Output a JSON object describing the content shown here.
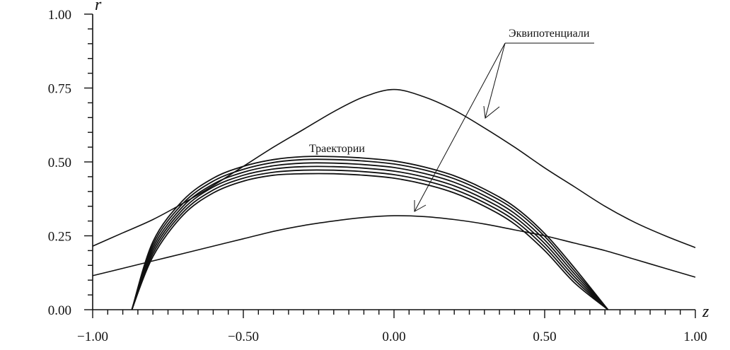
{
  "chart_data": {
    "type": "line",
    "xlabel": "z",
    "ylabel": "r",
    "xlim": [
      -1.0,
      1.0
    ],
    "ylim": [
      0.0,
      1.0
    ],
    "x_ticks": [
      -1.0,
      -0.5,
      0.0,
      0.5,
      1.0
    ],
    "x_tick_labels": [
      "−1.00",
      "−0.50",
      "0.00",
      "0.50",
      "1.00"
    ],
    "y_ticks": [
      0.0,
      0.25,
      0.5,
      0.75,
      1.0
    ],
    "y_tick_labels": [
      "0.00",
      "0.25",
      "0.50",
      "0.75",
      "1.00"
    ],
    "minor_tick_step": 0.05,
    "grid": false,
    "colors": {
      "line": "#111111",
      "axis": "#111111",
      "background": "#ffffff"
    },
    "annotations": [
      {
        "text": "Эквипотенциали",
        "points_to": [
          "equipotential-outer",
          "equipotential-inner"
        ]
      },
      {
        "text": "Траектории",
        "points_to": [
          "trajectories"
        ]
      }
    ],
    "series": [
      {
        "group": "equipotential",
        "x": [
          -1.0,
          -0.9,
          -0.8,
          -0.7,
          -0.6,
          -0.5,
          -0.4,
          -0.3,
          -0.2,
          -0.1,
          0.0,
          0.1,
          0.2,
          0.3,
          0.4,
          0.5,
          0.6,
          0.7,
          0.8,
          0.9,
          1.0
        ],
        "y": [
          0.215,
          0.26,
          0.305,
          0.36,
          0.42,
          0.485,
          0.55,
          0.61,
          0.67,
          0.72,
          0.745,
          0.72,
          0.675,
          0.615,
          0.55,
          0.48,
          0.415,
          0.35,
          0.295,
          0.25,
          0.21
        ]
      },
      {
        "group": "equipotential",
        "x": [
          -1.0,
          -0.9,
          -0.8,
          -0.7,
          -0.6,
          -0.5,
          -0.4,
          -0.3,
          -0.2,
          -0.1,
          0.0,
          0.1,
          0.2,
          0.3,
          0.4,
          0.5,
          0.6,
          0.7,
          0.8,
          0.9,
          1.0
        ],
        "y": [
          0.115,
          0.14,
          0.165,
          0.19,
          0.215,
          0.24,
          0.265,
          0.285,
          0.3,
          0.312,
          0.318,
          0.315,
          0.305,
          0.29,
          0.27,
          0.25,
          0.225,
          0.2,
          0.17,
          0.14,
          0.11
        ]
      },
      {
        "group": "trajectory",
        "x": [
          -0.87,
          -0.8,
          -0.7,
          -0.6,
          -0.5,
          -0.4,
          -0.3,
          -0.2,
          -0.1,
          0.0,
          0.1,
          0.2,
          0.3,
          0.4,
          0.5,
          0.6,
          0.71
        ],
        "y": [
          0.0,
          0.18,
          0.32,
          0.395,
          0.435,
          0.455,
          0.46,
          0.46,
          0.455,
          0.445,
          0.425,
          0.395,
          0.35,
          0.29,
          0.2,
          0.09,
          0.0
        ]
      },
      {
        "group": "trajectory",
        "x": [
          -0.87,
          -0.8,
          -0.7,
          -0.6,
          -0.5,
          -0.4,
          -0.3,
          -0.2,
          -0.1,
          0.0,
          0.1,
          0.2,
          0.3,
          0.4,
          0.5,
          0.6,
          0.71
        ],
        "y": [
          0.0,
          0.19,
          0.33,
          0.405,
          0.445,
          0.465,
          0.472,
          0.472,
          0.467,
          0.457,
          0.437,
          0.407,
          0.362,
          0.302,
          0.212,
          0.1,
          0.0
        ]
      },
      {
        "group": "trajectory",
        "x": [
          -0.87,
          -0.8,
          -0.7,
          -0.6,
          -0.5,
          -0.4,
          -0.3,
          -0.2,
          -0.1,
          0.0,
          0.1,
          0.2,
          0.3,
          0.4,
          0.5,
          0.6,
          0.71
        ],
        "y": [
          0.0,
          0.2,
          0.34,
          0.415,
          0.455,
          0.476,
          0.484,
          0.484,
          0.479,
          0.469,
          0.449,
          0.419,
          0.374,
          0.314,
          0.224,
          0.11,
          0.0
        ]
      },
      {
        "group": "trajectory",
        "x": [
          -0.87,
          -0.8,
          -0.7,
          -0.6,
          -0.5,
          -0.4,
          -0.3,
          -0.2,
          -0.1,
          0.0,
          0.1,
          0.2,
          0.3,
          0.4,
          0.5,
          0.6,
          0.71
        ],
        "y": [
          0.0,
          0.21,
          0.35,
          0.425,
          0.465,
          0.487,
          0.496,
          0.496,
          0.491,
          0.481,
          0.461,
          0.431,
          0.386,
          0.326,
          0.236,
          0.12,
          0.0
        ]
      },
      {
        "group": "trajectory",
        "x": [
          -0.87,
          -0.8,
          -0.7,
          -0.6,
          -0.5,
          -0.4,
          -0.3,
          -0.2,
          -0.1,
          0.0,
          0.1,
          0.2,
          0.3,
          0.4,
          0.5,
          0.6,
          0.71
        ],
        "y": [
          0.0,
          0.22,
          0.36,
          0.435,
          0.475,
          0.498,
          0.508,
          0.508,
          0.503,
          0.493,
          0.473,
          0.443,
          0.398,
          0.338,
          0.248,
          0.13,
          0.0
        ]
      },
      {
        "group": "trajectory",
        "x": [
          -0.87,
          -0.8,
          -0.7,
          -0.6,
          -0.5,
          -0.4,
          -0.3,
          -0.2,
          -0.1,
          0.0,
          0.1,
          0.2,
          0.3,
          0.4,
          0.5,
          0.6,
          0.71
        ],
        "y": [
          0.0,
          0.23,
          0.37,
          0.445,
          0.485,
          0.508,
          0.518,
          0.518,
          0.513,
          0.503,
          0.483,
          0.453,
          0.408,
          0.348,
          0.258,
          0.14,
          0.0
        ]
      }
    ]
  }
}
